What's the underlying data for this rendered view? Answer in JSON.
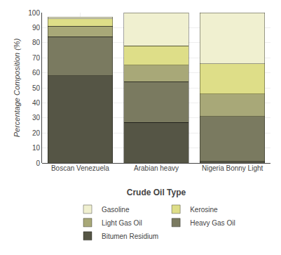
{
  "chart_data": {
    "type": "bar",
    "stacked": true,
    "xlabel": "Crude Oil Type",
    "ylabel": "Percentage Composition (%)",
    "categories": [
      "Boscan Venezuela",
      "Arabian heavy",
      "Nigeria Bonny Light"
    ],
    "series": [
      {
        "name": "Bitumen Residium",
        "color": "#555545",
        "values": [
          58,
          27,
          1
        ]
      },
      {
        "name": "Heavy Gas Oil",
        "color": "#7a7a60",
        "values": [
          26,
          27,
          30
        ]
      },
      {
        "name": "Light Gas Oil",
        "color": "#a8a878",
        "values": [
          7,
          11,
          15
        ]
      },
      {
        "name": "Kerosine",
        "color": "#dede88",
        "values": [
          5,
          13,
          20
        ]
      },
      {
        "name": "Gasoline",
        "color": "#f0f0d0",
        "values": [
          1,
          22,
          34
        ]
      }
    ],
    "ylim": [
      0,
      100
    ],
    "yticks": [
      0,
      10,
      20,
      30,
      40,
      50,
      60,
      70,
      80,
      90,
      100
    ],
    "grid": true,
    "legend": "bottom"
  }
}
